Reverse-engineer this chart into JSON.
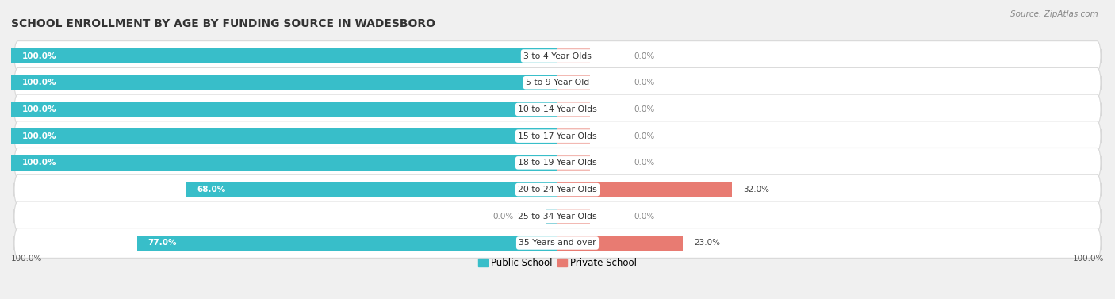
{
  "title": "SCHOOL ENROLLMENT BY AGE BY FUNDING SOURCE IN WADESBORO",
  "source": "Source: ZipAtlas.com",
  "categories": [
    "3 to 4 Year Olds",
    "5 to 9 Year Old",
    "10 to 14 Year Olds",
    "15 to 17 Year Olds",
    "18 to 19 Year Olds",
    "20 to 24 Year Olds",
    "25 to 34 Year Olds",
    "35 Years and over"
  ],
  "public_values": [
    100.0,
    100.0,
    100.0,
    100.0,
    100.0,
    68.0,
    0.0,
    77.0
  ],
  "private_values": [
    0.0,
    0.0,
    0.0,
    0.0,
    0.0,
    32.0,
    0.0,
    23.0
  ],
  "public_color": "#38BEC9",
  "private_color": "#E87B72",
  "public_color_light": "#8DD4DC",
  "private_color_light": "#F2B8B2",
  "background_color": "#F0F0F0",
  "row_bg_color": "#FFFFFF",
  "row_edge_color": "#D8D8D8",
  "axis_label_left": "100.0%",
  "axis_label_right": "100.0%",
  "title_fontsize": 10,
  "bar_height": 0.58,
  "xlim": [
    -100,
    100
  ],
  "max_val": 100
}
